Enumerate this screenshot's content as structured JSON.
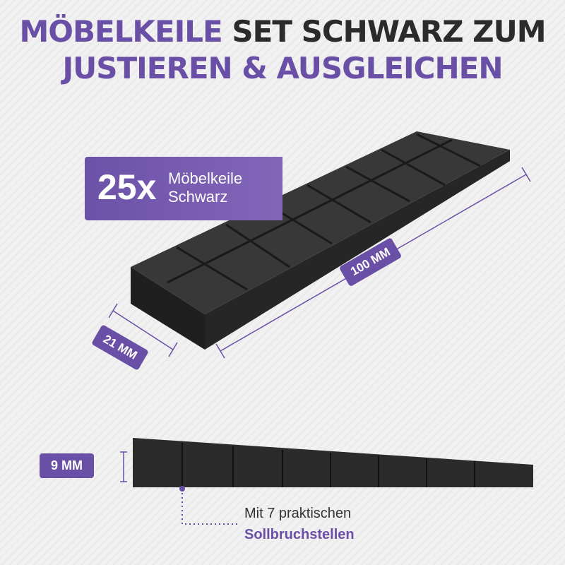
{
  "title": {
    "line1_purple": "MÖBELKEILE",
    "line1_dark": "SET SCHWARZ ZUM",
    "line2": "JUSTIEREN & AUSGLEICHEN"
  },
  "badge": {
    "count": "25x",
    "line1": "Möbelkeile",
    "line2": "Schwarz"
  },
  "dimensions": {
    "length": "100 MM",
    "width": "21 MM",
    "height": "9 MM"
  },
  "note": {
    "line1": "Mit 7 praktischen",
    "line2": "Sollbruchstellen"
  },
  "colors": {
    "accent": "#6a4fa6",
    "wedge": "#2e2e2e",
    "background": "#efefef"
  }
}
